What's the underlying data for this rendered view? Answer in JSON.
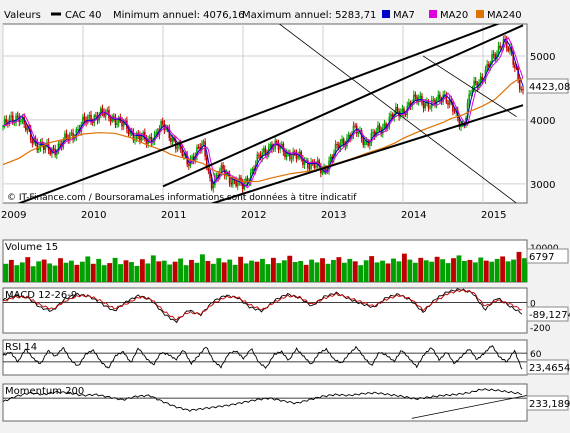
{
  "header": {
    "valeurs_label": "Valeurs",
    "index_name": "CAC 40",
    "min_text": "Minimum annuel: 4076,16",
    "max_text": "Maximum annuel: 5283,71",
    "legend": [
      {
        "label": "MA7",
        "color": "#0000cc"
      },
      {
        "label": "MA20",
        "color": "#dd00dd"
      },
      {
        "label": "MA240",
        "color": "#e07000"
      }
    ]
  },
  "colors": {
    "up": "#00a000",
    "down": "#c00000",
    "panel_bg": "#ffffff",
    "page_bg": "#f2f2f2",
    "ma240": "#e07000",
    "macd_signal": "#c00000"
  },
  "chart_data": [
    {
      "type": "line",
      "title": "CAC 40",
      "source": "© IT-Finance.com / BoursoramaLes informations sont données à titre indicatif",
      "x_labels": [
        "2009",
        "2010",
        "2011",
        "2012",
        "2013",
        "2014",
        "2015"
      ],
      "y_ticks": [
        3000,
        4000,
        5000
      ],
      "ylim": [
        2700,
        5500
      ],
      "last_value_label": "4423,08",
      "x": [
        2009.0,
        2009.2,
        2009.35,
        2009.6,
        2009.85,
        2010.0,
        2010.2,
        2010.4,
        2010.6,
        2010.8,
        2011.0,
        2011.1,
        2011.3,
        2011.5,
        2011.6,
        2011.75,
        2011.9,
        2012.0,
        2012.2,
        2012.35,
        2012.6,
        2012.9,
        2013.0,
        2013.2,
        2013.4,
        2013.55,
        2013.75,
        2013.9,
        2014.0,
        2014.2,
        2014.35,
        2014.5,
        2014.6,
        2014.75,
        2014.85,
        2015.0,
        2015.15,
        2015.25,
        2015.35,
        2015.42,
        2015.5
      ],
      "series": [
        {
          "name": "CAC 40",
          "color": "#00a000",
          "values": [
            3900,
            4080,
            3700,
            3500,
            3750,
            3950,
            4100,
            4030,
            3800,
            3660,
            3900,
            3750,
            3340,
            3600,
            3010,
            3210,
            3020,
            2960,
            3400,
            3620,
            3460,
            3280,
            3200,
            3600,
            3840,
            3650,
            3900,
            4090,
            4150,
            4350,
            4200,
            4420,
            4200,
            3900,
            4450,
            4700,
            5000,
            5280,
            5000,
            4750,
            4423
          ]
        },
        {
          "name": "MA240",
          "color": "#e07000",
          "values": [
            3300,
            3400,
            3520,
            3650,
            3720,
            3780,
            3800,
            3790,
            3720,
            3610,
            3520,
            3460,
            3390,
            3320,
            3230,
            3150,
            3080,
            3030,
            3040,
            3090,
            3160,
            3210,
            3260,
            3330,
            3410,
            3480,
            3560,
            3640,
            3710,
            3820,
            3890,
            3960,
            4020,
            4080,
            4140,
            4220,
            4320,
            4440,
            4560,
            4620,
            4650
          ]
        }
      ],
      "trendlines": [
        {
          "from": [
            2009.0,
            2600
          ],
          "to": [
            2015.5,
            5650
          ]
        },
        {
          "from": [
            2011.0,
            2960
          ],
          "to": [
            2015.5,
            5480
          ]
        },
        {
          "from": [
            2011.0,
            2450
          ],
          "to": [
            2015.5,
            4230
          ]
        },
        {
          "from": [
            2012.35,
            5600
          ],
          "to": [
            2015.5,
            2620
          ]
        },
        {
          "from": [
            2014.25,
            5000
          ],
          "to": [
            2015.42,
            4050
          ]
        }
      ]
    },
    {
      "type": "bar",
      "title": "Volume 15",
      "y_ticks": [
        10000
      ],
      "ylim": [
        0,
        12000
      ],
      "last_value_label": "6797",
      "values": [
        5200,
        6300,
        4800,
        5600,
        7100,
        4500,
        5900,
        6400,
        5300,
        4700,
        6800,
        5500,
        6100,
        4900,
        5800,
        7300,
        5200,
        6600,
        4800,
        5400,
        6900,
        5100,
        6200,
        5700,
        4600,
        6500,
        5300,
        7600,
        5900,
        6100,
        5000,
        5800,
        6700,
        4800,
        6300,
        5500,
        7900,
        6000,
        5200,
        6800,
        5600,
        6400,
        4900,
        7200,
        5300,
        6100,
        5800,
        6600,
        5100,
        6900,
        5400,
        6200,
        7500,
        5700,
        6000,
        4900,
        6400,
        5600,
        6800,
        5200,
        6300,
        7100,
        5500,
        6600,
        5900,
        4800,
        6200,
        7400,
        5600,
        6100,
        5300,
        6700,
        5900,
        8100,
        6400,
        5500,
        6900,
        6200,
        5800,
        7200,
        6500,
        5400,
        6800,
        7600,
        6000,
        6300,
        5600,
        7000,
        6100,
        5800,
        6600,
        7300,
        5900,
        6400,
        8600,
        6797
      ],
      "colors_by_change": [
        "up",
        "down"
      ]
    },
    {
      "type": "line",
      "title": "MACD 12-26-9",
      "y_ticks": [
        0,
        -200
      ],
      "ylim": [
        -250,
        120
      ],
      "last_value_label": "-89,1274",
      "series": [
        {
          "name": "MACD",
          "color": "#000000",
          "values": [
            20,
            60,
            40,
            -40,
            -70,
            30,
            70,
            50,
            -10,
            -70,
            10,
            60,
            20,
            -90,
            -160,
            -60,
            -100,
            10,
            60,
            40,
            -40,
            -70,
            20,
            70,
            40,
            -30,
            50,
            80,
            30,
            -10,
            -40,
            40,
            70,
            20,
            -80,
            30,
            90,
            110,
            80,
            -60,
            40,
            -30,
            -89
          ]
        },
        {
          "name": "Signal",
          "color": "#c00000",
          "values": [
            10,
            45,
            45,
            -20,
            -55,
            10,
            55,
            55,
            10,
            -50,
            -10,
            45,
            30,
            -70,
            -140,
            -80,
            -95,
            -10,
            45,
            45,
            -20,
            -60,
            5,
            55,
            45,
            -15,
            35,
            70,
            40,
            5,
            -30,
            25,
            60,
            30,
            -60,
            10,
            75,
            100,
            90,
            -30,
            20,
            -10,
            -60
          ]
        }
      ]
    },
    {
      "type": "line",
      "title": "RSI 14",
      "y_ticks": [
        60,
        40
      ],
      "ylim": [
        10,
        90
      ],
      "last_value_label": "23,4654",
      "series": [
        {
          "name": "RSI 14",
          "color": "#000000",
          "values": [
            55,
            62,
            40,
            70,
            48,
            35,
            66,
            52,
            73,
            44,
            30,
            58,
            67,
            41,
            25,
            55,
            63,
            38,
            72,
            49,
            33,
            61,
            57,
            45,
            68,
            36,
            54,
            75,
            42,
            28,
            59,
            65,
            47,
            71,
            39,
            26,
            56,
            64,
            43,
            70,
            52,
            34,
            60,
            69,
            46,
            37,
            58,
            74,
            50,
            31,
            62,
            55,
            41,
            67,
            48,
            29,
            57,
            73,
            44,
            63,
            36,
            53,
            70,
            45,
            60,
            78,
            51,
            40,
            66,
            23
          ]
        }
      ]
    },
    {
      "type": "line",
      "title": "Momentum 200",
      "y_ticks": [],
      "ylim": [
        -1300,
        800
      ],
      "last_value_label": "233,1899",
      "series": [
        {
          "name": "Momentum 200",
          "color": "#000000",
          "values": [
            -200,
            100,
            300,
            200,
            350,
            300,
            150,
            200,
            50,
            -100,
            100,
            150,
            -200,
            -500,
            -700,
            -600,
            -500,
            -400,
            -250,
            -100,
            0,
            -150,
            -300,
            -100,
            100,
            200,
            150,
            250,
            300,
            200,
            100,
            -50,
            50,
            150,
            200,
            300,
            500,
            450,
            350,
            233
          ]
        }
      ],
      "trendlines": [
        {
          "from": [
            0.78,
            -1150
          ],
          "to": [
            1.0,
            150
          ]
        }
      ]
    }
  ]
}
